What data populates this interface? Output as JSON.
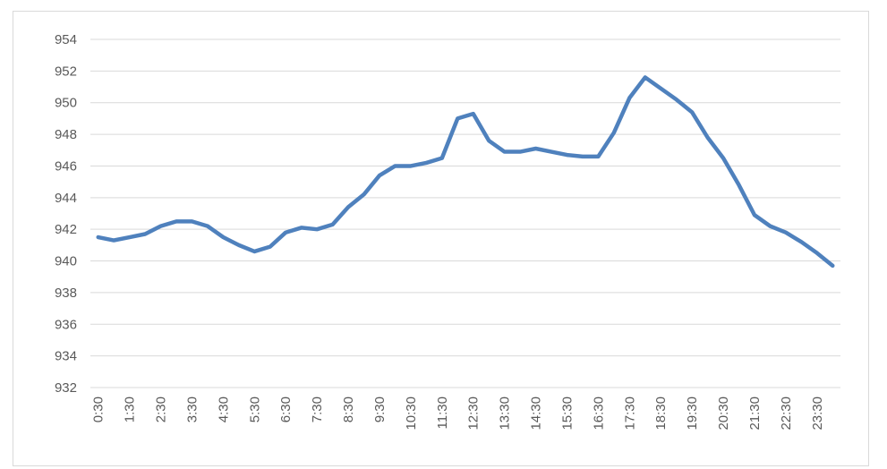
{
  "chart_data": {
    "type": "line",
    "categories": [
      "0:30",
      null,
      "1:30",
      null,
      "2:30",
      null,
      "3:30",
      null,
      "4:30",
      null,
      "5:30",
      null,
      "6:30",
      null,
      "7:30",
      null,
      "8:30",
      null,
      "9:30",
      null,
      "10:30",
      null,
      "11:30",
      null,
      "12:30",
      null,
      "13:30",
      null,
      "14:30",
      null,
      "15:30",
      null,
      "16:30",
      null,
      "17:30",
      null,
      "18:30",
      null,
      "19:30",
      null,
      "20:30",
      null,
      "21:30",
      null,
      "22:30",
      null,
      "23:30",
      null
    ],
    "values": [
      941.5,
      941.3,
      941.5,
      941.7,
      942.2,
      942.5,
      942.5,
      942.2,
      941.5,
      941.0,
      940.6,
      940.9,
      941.8,
      942.1,
      942.0,
      942.3,
      943.4,
      944.2,
      945.4,
      946.0,
      946.0,
      946.2,
      946.5,
      949.0,
      949.3,
      947.6,
      946.9,
      946.9,
      947.1,
      946.9,
      946.7,
      946.6,
      946.6,
      948.1,
      950.3,
      951.6,
      950.9,
      950.2,
      949.4,
      947.8,
      946.5,
      944.8,
      942.9,
      942.2,
      941.8,
      941.2,
      940.5,
      939.7
    ],
    "color": "#4f81bd",
    "ylim": [
      932,
      954
    ],
    "yticks": [
      932,
      934,
      936,
      938,
      940,
      942,
      944,
      946,
      948,
      950,
      952,
      954
    ],
    "grid": true
  }
}
